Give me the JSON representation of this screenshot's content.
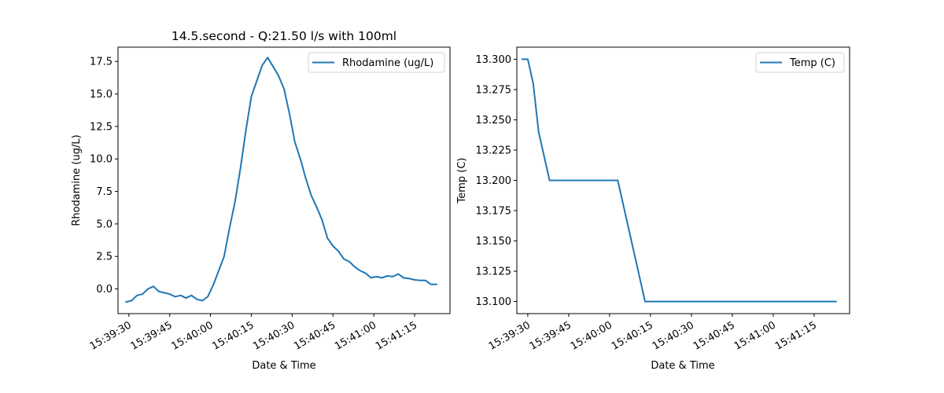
{
  "chart_data": [
    {
      "type": "line",
      "title": "14.5.second - Q:21.50 l/s with 100ml",
      "xlabel": "Date & Time",
      "ylabel": "Rhodamine (ug/L)",
      "x_tick_labels": [
        "15:39:30",
        "15:39:45",
        "15:40:00",
        "15:40:15",
        "15:40:30",
        "15:40:45",
        "15:41:00",
        "15:41:15"
      ],
      "y_tick_labels": [
        "0.0",
        "2.5",
        "5.0",
        "7.5",
        "10.0",
        "12.5",
        "15.0",
        "17.5"
      ],
      "xlim": [
        "15:39:26",
        "15:41:28"
      ],
      "ylim": [
        -1.9,
        18.6
      ],
      "legend": "upper right",
      "color": "#1f77b4",
      "series": [
        {
          "name": "Rhodamine (ug/L)",
          "x": [
            "15:39:29",
            "15:39:31",
            "15:39:33",
            "15:39:35",
            "15:39:37",
            "15:39:39",
            "15:39:41",
            "15:39:43",
            "15:39:45",
            "15:39:47",
            "15:39:49",
            "15:39:51",
            "15:39:53",
            "15:39:55",
            "15:39:57",
            "15:39:59",
            "15:40:01",
            "15:40:03",
            "15:40:05",
            "15:40:07",
            "15:40:09",
            "15:40:11",
            "15:40:13",
            "15:40:15",
            "15:40:17",
            "15:40:19",
            "15:40:21",
            "15:40:23",
            "15:40:25",
            "15:40:27",
            "15:40:29",
            "15:40:31",
            "15:40:33",
            "15:40:35",
            "15:40:37",
            "15:40:39",
            "15:40:41",
            "15:40:43",
            "15:40:45",
            "15:40:47",
            "15:40:49",
            "15:40:51",
            "15:40:53",
            "15:40:55",
            "15:40:57",
            "15:40:59",
            "15:41:01",
            "15:41:03",
            "15:41:05",
            "15:41:07",
            "15:41:09",
            "15:41:11",
            "15:41:13",
            "15:41:15",
            "15:41:17",
            "15:41:19",
            "15:41:21",
            "15:41:23"
          ],
          "values": [
            -1.0,
            -0.9,
            -0.5,
            -0.4,
            0.0,
            0.2,
            -0.2,
            -0.3,
            -0.4,
            -0.6,
            -0.5,
            -0.7,
            -0.5,
            -0.8,
            -0.9,
            -0.6,
            0.3,
            1.4,
            2.5,
            4.7,
            6.7,
            9.3,
            12.2,
            14.8,
            16.0,
            17.2,
            17.8,
            17.1,
            16.4,
            15.4,
            13.5,
            11.3,
            10.0,
            8.5,
            7.2,
            6.3,
            5.3,
            3.9,
            3.3,
            2.9,
            2.3,
            2.1,
            1.7,
            1.4,
            1.2,
            0.85,
            0.95,
            0.85,
            1.0,
            0.95,
            1.15,
            0.85,
            0.8,
            0.7,
            0.65,
            0.65,
            0.35,
            0.35
          ]
        }
      ]
    },
    {
      "type": "line",
      "title": "",
      "xlabel": "Date & Time",
      "ylabel": "Temp (C)",
      "x_tick_labels": [
        "15:39:30",
        "15:39:45",
        "15:40:00",
        "15:40:15",
        "15:40:30",
        "15:40:45",
        "15:41:00",
        "15:41:15"
      ],
      "y_tick_labels": [
        "13.100",
        "13.125",
        "13.150",
        "13.175",
        "13.200",
        "13.225",
        "13.250",
        "13.275",
        "13.300"
      ],
      "xlim": [
        "15:39:26",
        "15:41:28"
      ],
      "ylim": [
        13.09,
        13.31
      ],
      "legend": "upper right",
      "color": "#1f77b4",
      "series": [
        {
          "name": "Temp (C)",
          "x": [
            "15:39:28",
            "15:39:30",
            "15:39:32",
            "15:39:34",
            "15:39:38",
            "15:40:03",
            "15:40:13",
            "15:41:23"
          ],
          "values": [
            13.3,
            13.3,
            13.28,
            13.24,
            13.2,
            13.2,
            13.1,
            13.1
          ]
        }
      ]
    }
  ]
}
